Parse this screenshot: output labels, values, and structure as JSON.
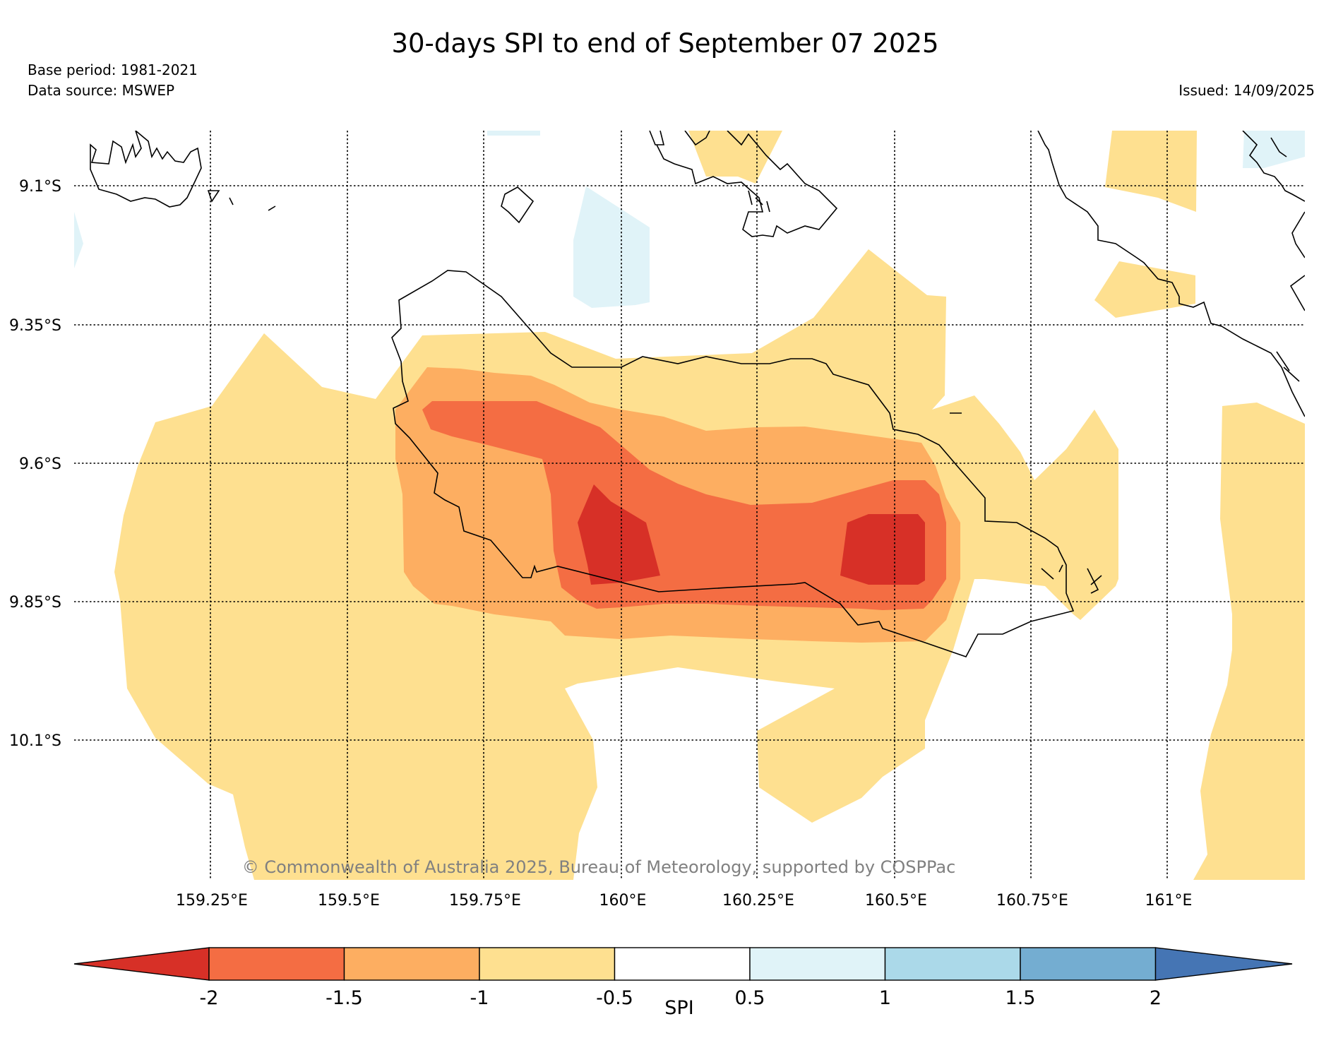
{
  "title": "30-days SPI to end of September 07 2025",
  "base_period": "Base period: 1981-2021",
  "data_source": "Data source: MSWEP",
  "issued": "Issued: 14/09/2025",
  "copyright": "© Commonwealth of Australia 2025, Bureau of Meteorology, supported by COSPPac",
  "lat_labels": [
    "9.1°S",
    "9.35°S",
    "9.6°S",
    "9.85°S",
    "10.1°S"
  ],
  "lon_labels": [
    "159.25°E",
    "159.5°E",
    "159.75°E",
    "160°E",
    "160.25°E",
    "160.5°E",
    "160.75°E",
    "161°E"
  ],
  "colorbar": {
    "label": "SPI",
    "ticks": [
      "-2",
      "-1.5",
      "-1",
      "-0.5",
      "0.5",
      "1",
      "1.5",
      "2"
    ],
    "colors": {
      "below_min": "#d73027",
      "bins": [
        "#f46d43",
        "#fdae61",
        "#fee090",
        "#ffffff",
        "#e0f3f8",
        "#abd9e9",
        "#74add1"
      ],
      "above_max": "#4575b4"
    }
  }
}
